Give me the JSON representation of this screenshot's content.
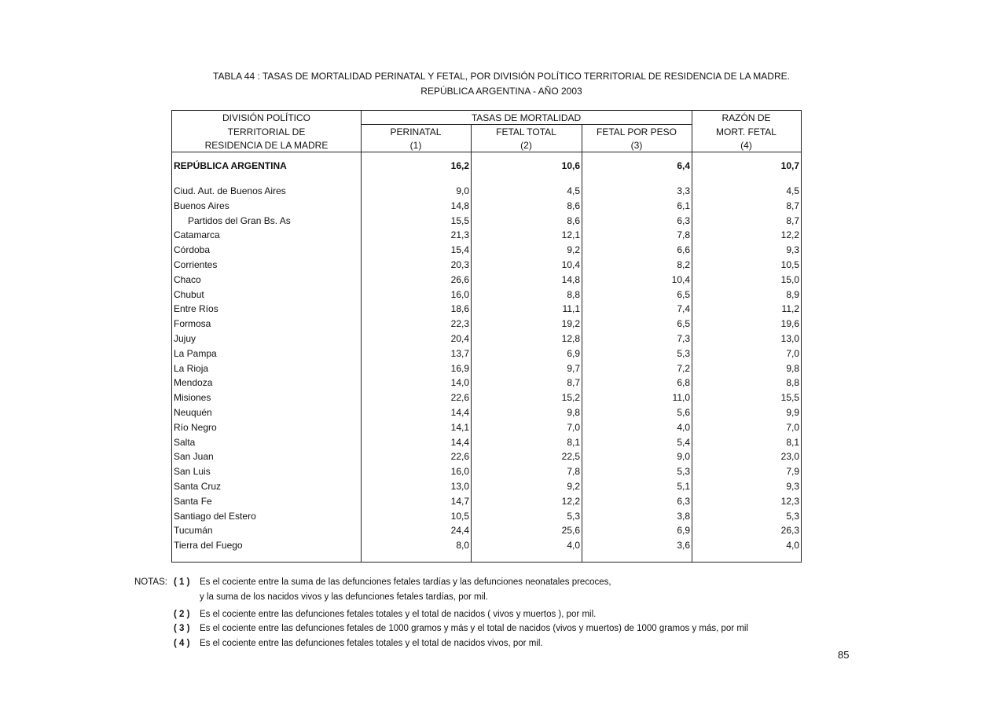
{
  "title": {
    "line1": "TABLA 44 : TASAS DE MORTALIDAD PERINATAL Y FETAL, POR DIVISIÓN POLÍTICO TERRITORIAL DE RESIDENCIA DE LA MADRE.",
    "line2": "REPÚBLICA ARGENTINA - AÑO 2003"
  },
  "header": {
    "division": [
      "DIVISIÓN POLÍTICO",
      "TERRITORIAL DE",
      "RESIDENCIA DE LA MADRE"
    ],
    "tasas": "TASAS  DE MORTALIDAD",
    "perinatal": [
      "PERINATAL",
      "(1)"
    ],
    "fetal_total": [
      "FETAL TOTAL",
      "(2)"
    ],
    "fetal_peso": [
      "FETAL  POR PESO",
      "(3)"
    ],
    "razon": [
      "RAZÓN DE",
      "MORT. FETAL",
      "(4)"
    ]
  },
  "total_row": {
    "name": "REPÚBLICA ARGENTINA",
    "values": [
      "16,2",
      "10,6",
      "6,4",
      "10,7"
    ]
  },
  "rows": [
    {
      "name": "Ciud. Aut. de  Buenos Aires",
      "values": [
        "9,0",
        "4,5",
        "3,3",
        "4,5"
      ]
    },
    {
      "name": "Buenos Aires",
      "values": [
        "14,8",
        "8,6",
        "6,1",
        "8,7"
      ]
    },
    {
      "name": "Partidos del Gran Bs. As",
      "indent": true,
      "values": [
        "15,5",
        "8,6",
        "6,3",
        "8,7"
      ]
    },
    {
      "name": "Catamarca",
      "values": [
        "21,3",
        "12,1",
        "7,8",
        "12,2"
      ]
    },
    {
      "name": "Córdoba",
      "values": [
        "15,4",
        "9,2",
        "6,6",
        "9,3"
      ]
    },
    {
      "name": "Corrientes",
      "values": [
        "20,3",
        "10,4",
        "8,2",
        "10,5"
      ]
    },
    {
      "name": "Chaco",
      "values": [
        "26,6",
        "14,8",
        "10,4",
        "15,0"
      ]
    },
    {
      "name": "Chubut",
      "values": [
        "16,0",
        "8,8",
        "6,5",
        "8,9"
      ]
    },
    {
      "name": "Entre Ríos",
      "values": [
        "18,6",
        "11,1",
        "7,4",
        "11,2"
      ]
    },
    {
      "name": "Formosa",
      "values": [
        "22,3",
        "19,2",
        "6,5",
        "19,6"
      ]
    },
    {
      "name": "Jujuy",
      "values": [
        "20,4",
        "12,8",
        "7,3",
        "13,0"
      ]
    },
    {
      "name": "La Pampa",
      "values": [
        "13,7",
        "6,9",
        "5,3",
        "7,0"
      ]
    },
    {
      "name": "La Rioja",
      "values": [
        "16,9",
        "9,7",
        "7,2",
        "9,8"
      ]
    },
    {
      "name": "Mendoza",
      "values": [
        "14,0",
        "8,7",
        "6,8",
        "8,8"
      ]
    },
    {
      "name": "Misiones",
      "values": [
        "22,6",
        "15,2",
        "11,0",
        "15,5"
      ]
    },
    {
      "name": "Neuquén",
      "values": [
        "14,4",
        "9,8",
        "5,6",
        "9,9"
      ]
    },
    {
      "name": "Río Negro",
      "values": [
        "14,1",
        "7,0",
        "4,0",
        "7,0"
      ]
    },
    {
      "name": "Salta",
      "values": [
        "14,4",
        "8,1",
        "5,4",
        "8,1"
      ]
    },
    {
      "name": "San Juan",
      "values": [
        "22,6",
        "22,5",
        "9,0",
        "23,0"
      ]
    },
    {
      "name": "San Luis",
      "values": [
        "16,0",
        "7,8",
        "5,3",
        "7,9"
      ]
    },
    {
      "name": "Santa Cruz",
      "values": [
        "13,0",
        "9,2",
        "5,1",
        "9,3"
      ]
    },
    {
      "name": "Santa Fe",
      "values": [
        "14,7",
        "12,2",
        "6,3",
        "12,3"
      ]
    },
    {
      "name": "Santiago del Estero",
      "values": [
        "10,5",
        "5,3",
        "3,8",
        "5,3"
      ]
    },
    {
      "name": "Tucumán",
      "values": [
        "24,4",
        "25,6",
        "6,9",
        "26,3"
      ]
    },
    {
      "name": "Tierra del Fuego",
      "values": [
        "8,0",
        "4,0",
        "3,6",
        "4,0"
      ]
    }
  ],
  "notes": {
    "label": "NOTAS:",
    "items": [
      {
        "num": "( 1 )",
        "text": "Es el cociente entre la suma de las defunciones fetales tardías y las defunciones neonatales precoces,",
        "cont": "y  la suma de los nacidos vivos y las defunciones fetales tardías,  por mil."
      },
      {
        "num": "( 2 )",
        "text": "Es el cociente entre las defunciones fetales totales y el total de nacidos ( vivos y muertos ), por mil."
      },
      {
        "num": "( 3 )",
        "text": "Es el cociente entre las defunciones fetales de 1000 gramos y más y el total de nacidos (vivos y muertos) de 1000 gramos y más, por mil"
      },
      {
        "num": "( 4 )",
        "text": "Es el cociente entre las defunciones fetales totales y el total de nacidos vivos, por mil."
      }
    ]
  },
  "page_number": "85"
}
